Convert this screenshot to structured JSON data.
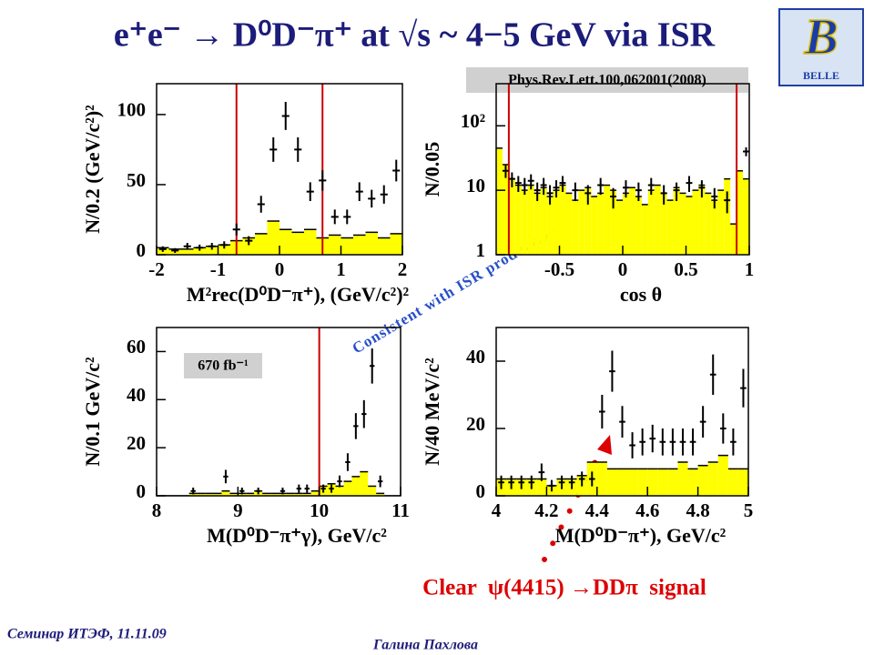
{
  "slide": {
    "title": "e⁺e⁻ → D⁰D⁻π⁺ at √s ~ 4−5 GeV via ISR",
    "logo_text": "BELLE",
    "reference": "Phys.Rev.Lett.100,062001(2008)",
    "comment": "Consistent with ISR production",
    "signal": "Clear  ψ(4415) →DDπ  signal",
    "footer_left": "Семинар ИТЭФ, 11.11.09",
    "footer_right": "Галина Пахлова"
  },
  "chart_data": [
    {
      "type": "histogram",
      "xlabel": "M²rec(D⁰D⁻π⁺), (GeV/c²)²",
      "ylabel": "N/0.2 (GeV/c²)²",
      "xlim": [
        -2,
        2
      ],
      "ylim": [
        0,
        122
      ],
      "xticks": [
        -2,
        -1,
        0,
        1,
        2
      ],
      "yticks": [
        0,
        50,
        100
      ],
      "color": "#ffff00",
      "cut_color": "#cc0000",
      "cuts": [
        -0.7,
        0.7
      ],
      "bins": [
        -2,
        -1.8,
        -1.6,
        -1.4,
        -1.2,
        -1,
        -0.8,
        -0.6,
        -0.4,
        -0.2,
        0,
        0.2,
        0.4,
        0.6,
        0.8,
        1,
        1.2,
        1.4,
        1.6,
        1.8,
        2
      ],
      "values": [
        5,
        4,
        4,
        5,
        6,
        7,
        10,
        12,
        15,
        24,
        18,
        16,
        18,
        12,
        14,
        12,
        14,
        16,
        12,
        15
      ],
      "points": {
        "x": [
          -1.9,
          -1.7,
          -1.5,
          -1.3,
          -1.1,
          -0.9,
          -0.7,
          -0.5,
          -0.3,
          -0.1,
          0.1,
          0.3,
          0.5,
          0.7,
          0.9,
          1.1,
          1.3,
          1.5,
          1.7,
          1.9
        ],
        "values": [
          4,
          3,
          6,
          5,
          6,
          7,
          18,
          10,
          36,
          75,
          99,
          75,
          45,
          53,
          27,
          27,
          45,
          40,
          43,
          60
        ],
        "errors": [
          2,
          1.7,
          2.4,
          2.2,
          2.4,
          2.6,
          4.2,
          3.2,
          6,
          8.7,
          10,
          8.7,
          6.7,
          7.3,
          5.2,
          5.2,
          6.7,
          6.3,
          6.6,
          7.7
        ]
      }
    },
    {
      "type": "histogram",
      "xlabel": "cos θ",
      "ylabel": "N/0.05",
      "log_y": true,
      "xlim": [
        -1,
        1
      ],
      "ylim": [
        1,
        450
      ],
      "xticks": [
        -0.5,
        0,
        0.5,
        1
      ],
      "yticks": [
        1,
        10,
        {
          "value": 100,
          "label": "10²"
        }
      ],
      "color": "#ffff00",
      "cut_color": "#cc0000",
      "cuts": [
        -0.9,
        0.9
      ],
      "bins": [
        -1,
        -0.95,
        -0.9,
        -0.85,
        -0.8,
        -0.75,
        -0.7,
        -0.65,
        -0.6,
        -0.55,
        -0.5,
        -0.45,
        -0.4,
        -0.35,
        -0.3,
        -0.25,
        -0.2,
        -0.15,
        -0.1,
        -0.05,
        0,
        0.05,
        0.1,
        0.15,
        0.2,
        0.25,
        0.3,
        0.35,
        0.4,
        0.45,
        0.5,
        0.55,
        0.6,
        0.65,
        0.7,
        0.75,
        0.8,
        0.85,
        0.9,
        0.95,
        1
      ],
      "values": [
        45,
        25,
        15,
        12,
        10,
        12,
        9,
        11,
        8,
        10,
        12,
        9,
        7,
        10,
        11,
        8,
        9,
        12,
        10,
        7,
        9,
        11,
        8,
        6,
        10,
        12,
        9,
        7,
        11,
        9,
        8,
        10,
        12,
        9,
        7,
        10,
        15,
        3,
        20,
        15
      ],
      "points": {
        "x": [
          -0.925,
          -0.875,
          -0.825,
          -0.775,
          -0.725,
          -0.675,
          -0.625,
          -0.575,
          -0.525,
          -0.475,
          -0.375,
          -0.275,
          -0.175,
          -0.075,
          0.025,
          0.125,
          0.225,
          0.325,
          0.425,
          0.525,
          0.625,
          0.725,
          0.825,
          0.975
        ],
        "values": [
          20,
          15,
          13,
          12,
          14,
          10,
          12,
          9,
          11,
          13,
          10,
          9,
          12,
          8,
          11,
          10,
          12,
          9,
          10,
          13,
          11,
          8,
          7,
          40
        ],
        "errors": [
          4.5,
          3.9,
          3.6,
          3.5,
          3.7,
          3.2,
          3.5,
          3,
          3.3,
          3.6,
          3.2,
          3,
          3.5,
          2.8,
          3.3,
          3.2,
          3.5,
          3,
          3.2,
          3.6,
          3.3,
          2.8,
          2.6,
          6.3
        ]
      }
    },
    {
      "type": "histogram",
      "xlabel": "M(D⁰D⁻π⁺γ), GeV/c²",
      "ylabel": "N/0.1 GeV/c²",
      "annotation": "670 fb⁻¹",
      "xlim": [
        8,
        11
      ],
      "ylim": [
        0,
        70
      ],
      "xticks": [
        8,
        9,
        10,
        11
      ],
      "yticks": [
        0,
        20,
        40,
        60
      ],
      "color": "#ffff00",
      "cut_color": "#cc0000",
      "cuts": [
        10
      ],
      "bins": [
        8,
        8.1,
        8.2,
        8.3,
        8.4,
        8.5,
        8.6,
        8.7,
        8.8,
        8.9,
        9,
        9.1,
        9.2,
        9.3,
        9.4,
        9.5,
        9.6,
        9.7,
        9.8,
        9.9,
        10,
        10.1,
        10.2,
        10.3,
        10.4,
        10.5,
        10.6,
        10.7,
        10.8,
        10.9,
        11
      ],
      "values": [
        0,
        0,
        0,
        0,
        1,
        1,
        1,
        1,
        2,
        1,
        1,
        1,
        2,
        1,
        1,
        1,
        1,
        1,
        1,
        2,
        4,
        5,
        4,
        6,
        8,
        10,
        4,
        1,
        0,
        0
      ],
      "points": {
        "x": [
          8.45,
          8.85,
          9.05,
          9.25,
          9.55,
          9.75,
          9.85,
          10.05,
          10.15,
          10.25,
          10.35,
          10.45,
          10.55,
          10.65,
          10.75
        ],
        "values": [
          2,
          8,
          2,
          2,
          2,
          3,
          3,
          3,
          3,
          6,
          14,
          29,
          34,
          54,
          6
        ],
        "errors": [
          1.4,
          2.8,
          1.4,
          1.4,
          1.4,
          1.7,
          1.7,
          1.7,
          1.7,
          2.4,
          3.7,
          5.4,
          5.8,
          7.3,
          2.4
        ]
      }
    },
    {
      "type": "histogram",
      "xlabel": "M(D⁰D⁻π⁺), GeV/c²",
      "ylabel": "N/40 MeV/c²",
      "xlim": [
        4,
        5
      ],
      "ylim": [
        0,
        50
      ],
      "xticks": [
        4,
        4.2,
        4.4,
        4.6,
        4.8,
        5
      ],
      "yticks": [
        0,
        20,
        40
      ],
      "color": "#ffff00",
      "cut_color": "#cc0000",
      "cuts": [],
      "bins": [
        4,
        4.04,
        4.08,
        4.12,
        4.16,
        4.2,
        4.24,
        4.28,
        4.32,
        4.36,
        4.4,
        4.44,
        4.48,
        4.52,
        4.56,
        4.6,
        4.64,
        4.68,
        4.72,
        4.76,
        4.8,
        4.84,
        4.88,
        4.92,
        4.96,
        5
      ],
      "values": [
        5,
        5,
        5,
        5,
        5,
        3,
        5,
        5,
        6,
        10,
        10,
        8,
        8,
        8,
        8,
        8,
        8,
        8,
        10,
        8,
        9,
        10,
        12,
        8,
        8
      ],
      "points": {
        "x": [
          4.02,
          4.06,
          4.1,
          4.14,
          4.18,
          4.22,
          4.26,
          4.3,
          4.34,
          4.38,
          4.42,
          4.46,
          4.5,
          4.54,
          4.58,
          4.62,
          4.66,
          4.7,
          4.74,
          4.78,
          4.82,
          4.86,
          4.9,
          4.94,
          4.98
        ],
        "values": [
          4,
          4,
          4,
          4,
          7,
          3,
          4,
          4,
          5,
          5,
          25,
          37,
          22,
          15,
          16,
          17,
          16,
          16,
          16,
          16,
          22,
          36,
          20,
          16,
          32
        ],
        "errors": [
          2,
          2,
          2,
          2,
          2.6,
          1.7,
          2,
          2,
          2.2,
          2.2,
          5,
          6.1,
          4.7,
          3.9,
          4,
          4.1,
          4,
          4,
          4,
          4,
          4.7,
          6,
          4.5,
          4,
          5.7
        ]
      }
    }
  ]
}
